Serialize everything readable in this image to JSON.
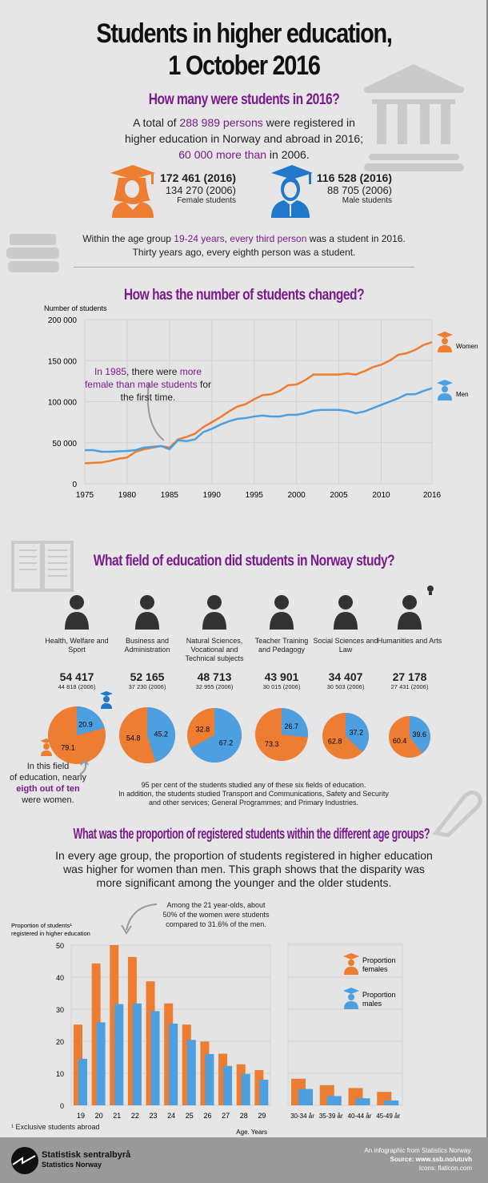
{
  "title": {
    "line1": "Students in higher education,",
    "line2": "1 October 2016"
  },
  "section1": {
    "heading": "How many were students in 2016?",
    "p1_a": "A total of ",
    "p1_b": "288 989 persons",
    "p1_c": " were registered in higher education in Norway and abroad in 2016; ",
    "p1_d": "60 000 more than",
    "p1_e": " in 2006.",
    "female": {
      "n2016": "172 461 (2016)",
      "n2006": "134 270 (2006)",
      "label": "Female students"
    },
    "male": {
      "n2016": "116 528 (2016)",
      "n2006": "88 705 (2006)",
      "label": "Male students"
    },
    "age_a": "Within the age group ",
    "age_b": "19-24 years",
    "age_c": ", ",
    "age_d": "every third person",
    "age_e": " was a student in 2016.",
    "age_f": "Thirty years ago, every eighth person was a student."
  },
  "section2": {
    "heading": "How has the number of students changed?",
    "annot_a": "In 1985",
    "annot_b": ", there were ",
    "annot_c": "more female than male students",
    "annot_d": " for the first time."
  },
  "section3": {
    "heading": "What field of education did students in Norway study?",
    "note1": "95 per cent of the students studied any of these six fields of education.",
    "note2": "In addition, the students studied Transport and Communications, Safety and Security",
    "note3": "and other services; General Programmes; and Primary Industries.",
    "annot_a": "In this field",
    "annot_b": "of education, nearly",
    "annot_c": "eigth out of ten",
    "annot_d": "were women."
  },
  "section4": {
    "heading": "What was the proportion of registered students within the different age groups?",
    "p1": "In every age group, the proportion of students registered in higher education",
    "p2": "was higher for women than men. This graph shows that the disparity was",
    "p3": "more significant among the younger and the older students.",
    "annot1": "Among the 21 year-olds, about",
    "annot2": "50% of the women were students",
    "annot3": "compared to 31.6% of the men.",
    "footnote": "¹ Exclusive students abroad"
  },
  "colors": {
    "female": "#ed7d31",
    "male": "#4e9fdf",
    "accent": "#7a1b8c"
  },
  "chart_data": [
    {
      "type": "line",
      "ylabel": "Number of students",
      "ylim": [
        0,
        200000
      ],
      "yticks": [
        "0",
        "50 000",
        "100 000",
        "150 000",
        "200 000"
      ],
      "xticks": [
        "1975",
        "1980",
        "1985",
        "1990",
        "1995",
        "2000",
        "2005",
        "2010",
        "2016"
      ],
      "grid": true,
      "legend": "right",
      "x": [
        1975,
        1976,
        1977,
        1978,
        1979,
        1980,
        1981,
        1982,
        1983,
        1984,
        1985,
        1986,
        1987,
        1988,
        1989,
        1990,
        1991,
        1992,
        1993,
        1994,
        1995,
        1996,
        1997,
        1998,
        1999,
        2000,
        2001,
        2002,
        2003,
        2004,
        2005,
        2006,
        2007,
        2008,
        2009,
        2010,
        2011,
        2012,
        2013,
        2014,
        2015,
        2016
      ],
      "series": [
        {
          "name": "Women",
          "values": [
            25000,
            25500,
            26000,
            28000,
            30500,
            32000,
            39000,
            42000,
            44000,
            46000,
            44000,
            54000,
            57000,
            61000,
            69000,
            75000,
            81000,
            88000,
            94000,
            97000,
            103000,
            108000,
            109000,
            113000,
            120000,
            121000,
            126000,
            133000,
            133000,
            133000,
            133000,
            134270,
            133000,
            137000,
            142000,
            145000,
            150000,
            157000,
            159000,
            163000,
            169000,
            172461
          ]
        },
        {
          "name": "Men",
          "values": [
            41000,
            41000,
            39000,
            39000,
            39500,
            40000,
            41000,
            44000,
            45000,
            46000,
            42000,
            53000,
            52000,
            54000,
            63000,
            67000,
            72000,
            76000,
            79000,
            80000,
            82000,
            83000,
            82000,
            82000,
            84000,
            84000,
            86000,
            89000,
            90000,
            90000,
            90000,
            88705,
            86000,
            88000,
            92000,
            96000,
            100000,
            104000,
            109000,
            109000,
            113000,
            116528
          ]
        }
      ]
    },
    {
      "type": "pie",
      "fields": [
        {
          "label": "Health, Welfare and Sport",
          "total": "54 417",
          "total2006": "44 818 (2006)",
          "female": 79.1,
          "male": 20.9
        },
        {
          "label": "Business and Administration",
          "total": "52 165",
          "total2006": "37 230 (2006)",
          "female": 54.8,
          "male": 45.2
        },
        {
          "label": "Natural Sciences, Vocational and Technical subjects",
          "total": "48 713",
          "total2006": "32 955 (2006)",
          "female": 32.8,
          "male": 67.2
        },
        {
          "label": "Teacher Training and Pedagogy",
          "total": "43 901",
          "total2006": "30 015 (2006)",
          "female": 73.3,
          "male": 26.7
        },
        {
          "label": "Social Sciences and Law",
          "total": "34 407",
          "total2006": "30 503 (2006)",
          "female": 62.8,
          "male": 37.2
        },
        {
          "label": "Humanities and Arts",
          "total": "27 178",
          "total2006": "27 431 (2006)",
          "female": 60.4,
          "male": 39.6
        }
      ]
    },
    {
      "type": "bar",
      "ylabel": "Proportion of students¹ registered in higher education",
      "xlabel": "Age. Years",
      "ylim": [
        0,
        50
      ],
      "yticks": [
        "0",
        "10",
        "20",
        "30",
        "40",
        "50"
      ],
      "categories": [
        "19",
        "20",
        "21",
        "22",
        "23",
        "24",
        "25",
        "26",
        "27",
        "28",
        "29"
      ],
      "series": [
        {
          "name": "Proportion females",
          "values": [
            25.2,
            44.3,
            50,
            46.3,
            38.7,
            31.8,
            25.2,
            19.9,
            16.1,
            12.8,
            11.0
          ]
        },
        {
          "name": "Proportion males",
          "values": [
            14.5,
            25.9,
            31.6,
            31.8,
            29.4,
            25.5,
            20.4,
            16.0,
            12.3,
            9.8,
            8.0
          ]
        }
      ]
    },
    {
      "type": "bar",
      "ylim": [
        0,
        50
      ],
      "legend": "top-right",
      "categories": [
        "30-34 år",
        "35-39 år",
        "40-44 år",
        "45-49 år"
      ],
      "series": [
        {
          "name": "Proportion females",
          "values": [
            8.3,
            6.3,
            5.4,
            4.2
          ]
        },
        {
          "name": "Proportion males",
          "values": [
            5.1,
            2.9,
            2.2,
            1.5
          ]
        }
      ]
    }
  ],
  "footer": {
    "logo1": "Statistisk sentralbyrå",
    "logo2": "Statistics Norway",
    "credit": "An infographic from Statistics Norway.",
    "source": "Source: www.ssb.no/utuvh",
    "icons": "Icons: flaticon.com"
  }
}
